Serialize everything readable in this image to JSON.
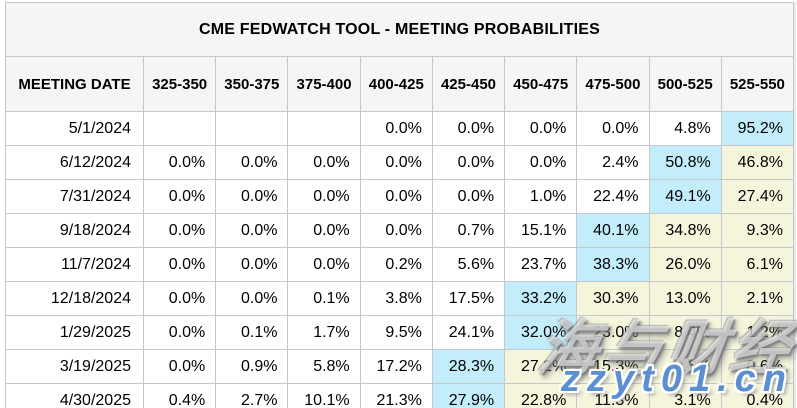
{
  "chart_data": {
    "type": "table",
    "title": "CME FEDWATCH TOOL - MEETING PROBABILITIES",
    "columns": [
      "MEETING DATE",
      "325-350",
      "350-375",
      "375-400",
      "400-425",
      "425-450",
      "450-475",
      "475-500",
      "500-525",
      "525-550"
    ],
    "rows": [
      {
        "date": "5/1/2024",
        "values": [
          "",
          "",
          "",
          "0.0%",
          "0.0%",
          "0.0%",
          "0.0%",
          "4.8%",
          "95.2%"
        ],
        "max_col": 8,
        "yellow_cols": []
      },
      {
        "date": "6/12/2024",
        "values": [
          "0.0%",
          "0.0%",
          "0.0%",
          "0.0%",
          "0.0%",
          "0.0%",
          "2.4%",
          "50.8%",
          "46.8%"
        ],
        "max_col": 7,
        "yellow_cols": [
          8
        ]
      },
      {
        "date": "7/31/2024",
        "values": [
          "0.0%",
          "0.0%",
          "0.0%",
          "0.0%",
          "0.0%",
          "1.0%",
          "22.4%",
          "49.1%",
          "27.4%"
        ],
        "max_col": 7,
        "yellow_cols": [
          8
        ]
      },
      {
        "date": "9/18/2024",
        "values": [
          "0.0%",
          "0.0%",
          "0.0%",
          "0.0%",
          "0.7%",
          "15.1%",
          "40.1%",
          "34.8%",
          "9.3%"
        ],
        "max_col": 6,
        "yellow_cols": [
          7,
          8
        ]
      },
      {
        "date": "11/7/2024",
        "values": [
          "0.0%",
          "0.0%",
          "0.0%",
          "0.2%",
          "5.6%",
          "23.7%",
          "38.3%",
          "26.0%",
          "6.1%"
        ],
        "max_col": 6,
        "yellow_cols": [
          7,
          8
        ]
      },
      {
        "date": "12/18/2024",
        "values": [
          "0.0%",
          "0.0%",
          "0.1%",
          "3.8%",
          "17.5%",
          "33.2%",
          "30.3%",
          "13.0%",
          "2.1%"
        ],
        "max_col": 5,
        "yellow_cols": [
          6,
          7,
          8
        ]
      },
      {
        "date": "1/29/2025",
        "values": [
          "0.0%",
          "0.1%",
          "1.7%",
          "9.5%",
          "24.1%",
          "32.0%",
          "23.0%",
          "8.4%",
          "1.2%"
        ],
        "max_col": 5,
        "yellow_cols": [
          6,
          7,
          8
        ]
      },
      {
        "date": "3/19/2025",
        "values": [
          "0.0%",
          "0.9%",
          "5.8%",
          "17.2%",
          "28.3%",
          "27.2%",
          "15.3%",
          "4.6%",
          "0.6%"
        ],
        "max_col": 4,
        "yellow_cols": [
          5,
          6,
          7,
          8
        ]
      },
      {
        "date": "4/30/2025",
        "values": [
          "0.4%",
          "2.7%",
          "10.1%",
          "21.3%",
          "27.9%",
          "22.8%",
          "11.3%",
          "3.1%",
          "0.4%"
        ],
        "max_col": 4,
        "yellow_cols": [
          5,
          6,
          7,
          8
        ]
      }
    ]
  },
  "colors": {
    "highlight_cyan": "#c3edfb",
    "highlight_yellow": "#f5f5dc",
    "header_bg": "#f5f5f5",
    "border": "#c6c6d0",
    "text": "#000000",
    "watermark_blue": "#5b8fd0"
  },
  "watermark": {
    "text_cn": "海与财经",
    "text_url": "zzyt01.cn"
  }
}
